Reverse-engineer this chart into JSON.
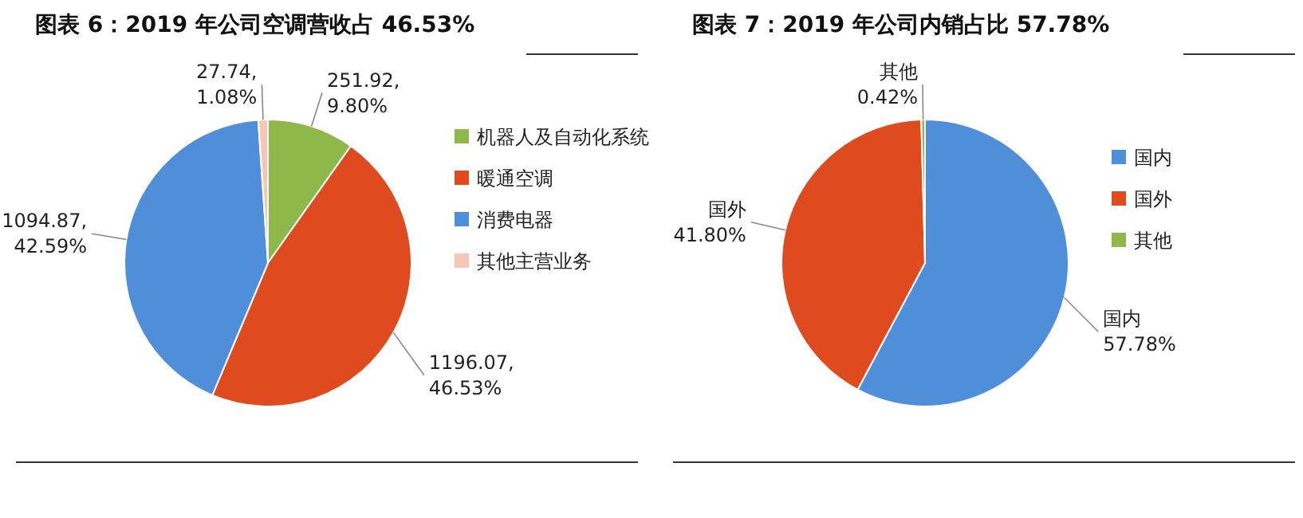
{
  "chart_data": [
    {
      "type": "pie",
      "title": "图表 6：2019 年公司空调营收占 46.53%",
      "categories": [
        "机器人及自动化系统",
        "暖通空调",
        "消费电器",
        "其他主营业务"
      ],
      "values": [
        251.92,
        1196.07,
        1094.87,
        27.74
      ],
      "colors": [
        "#8fb84a",
        "#e04a1f",
        "#4f8fd9",
        "#f5c5b5"
      ],
      "value_labels": [
        "251.92, 9.80%",
        "1196.07, 46.53%",
        "1094.87, 42.59%",
        "27.74, 1.08%"
      ],
      "legend": "right"
    },
    {
      "type": "pie",
      "title": "图表 7：2019 年公司内销占比 57.78%",
      "categories": [
        "国内",
        "国外",
        "其他"
      ],
      "values": [
        57.78,
        41.8,
        0.42
      ],
      "colors": [
        "#4f8fd9",
        "#e04a1f",
        "#8fb84a"
      ],
      "value_labels": [
        "57.78%",
        "41.80%",
        "0.42%"
      ],
      "legend": "right"
    }
  ]
}
